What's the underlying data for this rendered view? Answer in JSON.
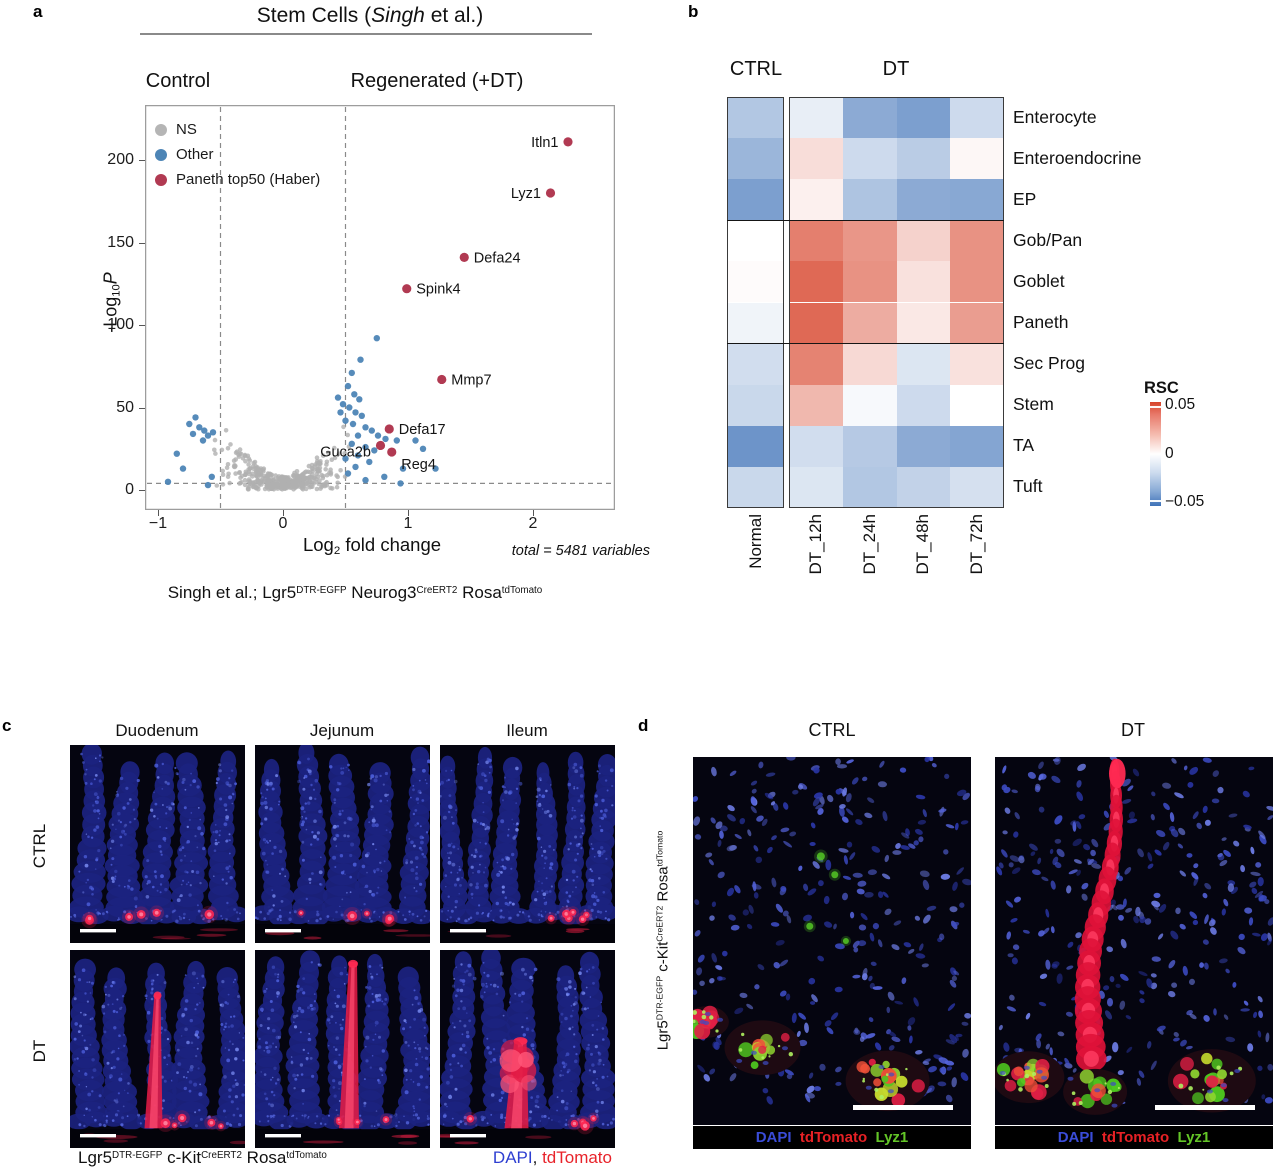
{
  "panel_a": {
    "label": "a",
    "title_segments": [
      {
        "t": "Stem Cells ("
      },
      {
        "t": "Singh",
        "i": true
      },
      {
        "t": " et al.)"
      }
    ],
    "control_label": "Control",
    "regenerated_label": "Regenerated (+DT)",
    "legend": [
      {
        "label": "NS",
        "color": "#b5b5b5"
      },
      {
        "label": "Other",
        "color": "#4d85b6"
      },
      {
        "label": "Paneth top50 (Haber)",
        "color": "#b13a52"
      }
    ],
    "ylabel_segments": [
      {
        "t": "-Log"
      },
      {
        "t": "10",
        "sub": true
      },
      {
        "t": "P",
        "i": true
      }
    ],
    "xlabel_segments": [
      {
        "t": "Log"
      },
      {
        "t": "2",
        "sub": true
      },
      {
        "t": " fold change"
      }
    ],
    "total_note": "total = 5481 variables",
    "caption_segments": [
      {
        "t": "Singh et al.; Lgr5"
      },
      {
        "t": "DTR-EGFP",
        "sup": true
      },
      {
        "t": " Neurog3"
      },
      {
        "t": "CreERT2",
        "sup": true
      },
      {
        "t": " Rosa"
      },
      {
        "t": "tdTomato",
        "sup": true
      }
    ]
  },
  "panel_b": {
    "label": "b",
    "group_headers": {
      "ctrl": "CTRL",
      "dt": "DT"
    },
    "legend_title": "RSC",
    "legend_ticks": [
      "0.05",
      "0",
      "−0.05"
    ]
  },
  "panel_c": {
    "label": "c",
    "col_headers": [
      "Duodenum",
      "Jejunum",
      "Ileum"
    ],
    "row_headers": [
      "CTRL",
      "DT"
    ],
    "genotype_segments": [
      {
        "t": "Lgr5"
      },
      {
        "t": "DTR-EGFP",
        "sup": true
      },
      {
        "t": " c-Kit"
      },
      {
        "t": "CreERT2",
        "sup": true
      },
      {
        "t": " Rosa"
      },
      {
        "t": "tdTomato",
        "sup": true
      }
    ],
    "stain_segments": [
      {
        "t": "DAPI",
        "c": "#2e3fd1"
      },
      {
        "t": ", ",
        "c": "#111111"
      },
      {
        "t": "tdTomato",
        "c": "#e8232a"
      }
    ]
  },
  "panel_d": {
    "label": "d",
    "col_headers": [
      "CTRL",
      "DT"
    ],
    "genotype_segments": [
      {
        "t": "Lgr5"
      },
      {
        "t": "DTR-EGFP",
        "sup": true
      },
      {
        "t": " c-Kit"
      },
      {
        "t": "CreERT2",
        "sup": true
      },
      {
        "t": " Rosa"
      },
      {
        "t": "tdTomato",
        "sup": true
      }
    ],
    "stain_bar_segments": [
      {
        "t": "DAPI",
        "c": "#3a4cd8"
      },
      {
        "t": "  ",
        "c": "#000000"
      },
      {
        "t": "tdTomato",
        "c": "#e62125"
      },
      {
        "t": "  ",
        "c": "#000000"
      },
      {
        "t": "Lyz1",
        "c": "#63c527"
      }
    ],
    "stain_colors": {
      "DAPI": "#3a4cd8",
      "tdTomato": "#e62125",
      "Lyz1": "#63c527"
    }
  },
  "chart_data": [
    {
      "type": "scatter",
      "title": "Stem Cells (Singh et al.) — volcano plot",
      "xlabel": "Log2 fold change",
      "ylabel": "-Log10 P",
      "xlim": [
        -1.1,
        2.65
      ],
      "ylim": [
        -12,
        233
      ],
      "xticks": [
        -1,
        0,
        1,
        2
      ],
      "yticks": [
        0,
        50,
        100,
        150,
        200
      ],
      "threshold_vlines_x": [
        -0.5,
        0.5
      ],
      "threshold_hline_y": 4,
      "annotation": "total = 5481 variables",
      "legend_position": "top-left-inside",
      "series": [
        {
          "name": "NS",
          "color": "#b0b0b0",
          "description": "dense unlabeled cloud, |log2FC| < ~0.65, -log10P mostly < 50",
          "cloud": {
            "count": 430,
            "seed": 13,
            "x_halfwidth": 0.65,
            "y_curve_coeff": 110,
            "y_curve_exp": 1.7,
            "y_base": 6,
            "y_cap": 52
          }
        },
        {
          "name": "Other",
          "color": "#4d85b6",
          "points": [
            [
              -0.75,
              40
            ],
            [
              -0.7,
              44
            ],
            [
              -0.67,
              38
            ],
            [
              -0.63,
              36
            ],
            [
              -0.6,
              33
            ],
            [
              -0.56,
              35
            ],
            [
              -0.72,
              34
            ],
            [
              -0.64,
              30
            ],
            [
              -0.85,
              22
            ],
            [
              -0.8,
              13
            ],
            [
              -0.57,
              8
            ],
            [
              -0.92,
              5
            ],
            [
              -0.6,
              3
            ],
            [
              0.75,
              92
            ],
            [
              0.62,
              79
            ],
            [
              0.55,
              71
            ],
            [
              0.52,
              63
            ],
            [
              0.57,
              58
            ],
            [
              0.61,
              55
            ],
            [
              0.53,
              50
            ],
            [
              0.58,
              47
            ],
            [
              0.63,
              45
            ],
            [
              0.5,
              42
            ],
            [
              0.56,
              40
            ],
            [
              0.66,
              38
            ],
            [
              0.71,
              36
            ],
            [
              0.6,
              33
            ],
            [
              0.76,
              33
            ],
            [
              0.82,
              31
            ],
            [
              0.91,
              30
            ],
            [
              1.06,
              30
            ],
            [
              0.55,
              28
            ],
            [
              0.66,
              26
            ],
            [
              1.12,
              25
            ],
            [
              0.73,
              24
            ],
            [
              0.6,
              21
            ],
            [
              0.5,
              19
            ],
            [
              0.69,
              17
            ],
            [
              0.58,
              14
            ],
            [
              0.96,
              13
            ],
            [
              1.22,
              13
            ],
            [
              0.52,
              10
            ],
            [
              0.81,
              8
            ],
            [
              0.66,
              6
            ],
            [
              0.94,
              4
            ],
            [
              0.46,
              47
            ],
            [
              0.48,
              52
            ],
            [
              0.44,
              56
            ]
          ]
        },
        {
          "name": "Paneth top50 (Haber)",
          "color": "#b13a52",
          "points": [
            {
              "gene": "Itln1",
              "x": 2.28,
              "y": 211,
              "label_side": "left"
            },
            {
              "gene": "Lyz1",
              "x": 2.14,
              "y": 180,
              "label_side": "left"
            },
            {
              "gene": "Defa24",
              "x": 1.45,
              "y": 141,
              "label_side": "right"
            },
            {
              "gene": "Spink4",
              "x": 0.99,
              "y": 122,
              "label_side": "right"
            },
            {
              "gene": "Mmp7",
              "x": 1.27,
              "y": 67,
              "label_side": "right"
            },
            {
              "gene": "Defa17",
              "x": 0.85,
              "y": 37,
              "label_side": "right"
            },
            {
              "gene": "Guca2b",
              "x": 0.78,
              "y": 27,
              "label_side": "left",
              "ldy": 6
            },
            {
              "gene": "Reg4",
              "x": 0.87,
              "y": 23,
              "label_side": "right",
              "ldy": 12
            }
          ]
        }
      ]
    },
    {
      "type": "heatmap",
      "title": "RSC by intestinal cell type",
      "rows": [
        "Enterocyte",
        "Enteroendocrine",
        "EP",
        "Gob/Pan",
        "Goblet",
        "Paneth",
        "Sec Prog",
        "Stem",
        "TA",
        "Tuft"
      ],
      "columns": [
        "Normal",
        "DT_12h",
        "DT_24h",
        "DT_48h",
        "DT_72h"
      ],
      "column_groups": [
        {
          "label": "CTRL",
          "columns": [
            "Normal"
          ]
        },
        {
          "label": "DT",
          "columns": [
            "DT_12h",
            "DT_24h",
            "DT_48h",
            "DT_72h"
          ]
        }
      ],
      "row_group_dividers_after": [
        "EP",
        "Paneth"
      ],
      "colorbar": {
        "title": "RSC",
        "min": -0.05,
        "max": 0.05,
        "min_color": "#3f72b8",
        "zero_color": "#ffffff",
        "max_color": "#d7432a"
      },
      "values": [
        [
          -0.02,
          -0.006,
          -0.03,
          -0.034,
          -0.013
        ],
        [
          -0.026,
          0.009,
          -0.013,
          -0.018,
          0.002
        ],
        [
          -0.034,
          0.004,
          -0.021,
          -0.03,
          -0.031
        ],
        [
          0.0,
          0.034,
          0.028,
          0.012,
          0.029
        ],
        [
          0.001,
          0.04,
          0.029,
          0.008,
          0.029
        ],
        [
          -0.004,
          0.04,
          0.022,
          0.006,
          0.026
        ],
        [
          -0.012,
          0.033,
          0.01,
          -0.009,
          0.008
        ],
        [
          -0.014,
          0.019,
          -0.002,
          -0.013,
          0.0
        ],
        [
          -0.038,
          -0.012,
          -0.019,
          -0.03,
          -0.032
        ],
        [
          -0.014,
          -0.009,
          -0.02,
          -0.016,
          -0.011
        ]
      ]
    }
  ]
}
